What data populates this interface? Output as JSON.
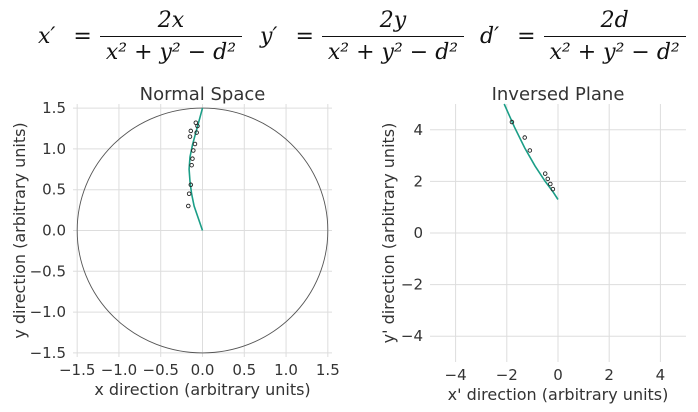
{
  "equations": [
    {
      "lhs": "x′",
      "eq": "=",
      "num": "2x",
      "den": "x² + y² − d²"
    },
    {
      "lhs": "y′",
      "eq": "=",
      "num": "2y",
      "den": "x² + y² − d²"
    },
    {
      "lhs": "d′",
      "eq": "=",
      "num": "2d",
      "den": "x² + y² − d²"
    }
  ],
  "colors": {
    "curve": "#1b9e87",
    "circle": "#555555",
    "grid": "#dddddd",
    "points": "#222222"
  },
  "chart_data": [
    {
      "type": "scatter",
      "title": "Normal Space",
      "xlabel": "x direction (arbitrary units)",
      "ylabel": "y direction (arbitrary units)",
      "xlim": [
        -1.55,
        1.55
      ],
      "ylim": [
        -1.55,
        1.55
      ],
      "xticks": [
        -1.5,
        -1.0,
        -0.5,
        0.0,
        0.5,
        1.0,
        1.5
      ],
      "yticks": [
        -1.5,
        -1.0,
        -0.5,
        0.0,
        0.5,
        1.0,
        1.5
      ],
      "xtick_labels": [
        "−1.5",
        "−1.0",
        "−0.5",
        "0.0",
        "0.5",
        "1.0",
        "1.5"
      ],
      "ytick_labels": [
        "−1.5",
        "−1.0",
        "−0.5",
        "0.0",
        "0.5",
        "1.0",
        "1.5"
      ],
      "grid": true,
      "circle": {
        "cx": 0,
        "cy": 0,
        "r": 1.5
      },
      "curve": {
        "x": [
          0.0,
          -0.05,
          -0.1,
          -0.13,
          -0.15,
          -0.16,
          -0.15,
          -0.12,
          -0.08,
          -0.04,
          0.0
        ],
        "y": [
          0.0,
          0.15,
          0.3,
          0.45,
          0.6,
          0.75,
          0.9,
          1.05,
          1.2,
          1.35,
          1.5
        ]
      },
      "points": {
        "x": [
          -0.17,
          -0.16,
          -0.14,
          -0.13,
          -0.12,
          -0.11,
          -0.09,
          -0.07,
          -0.06,
          -0.15,
          -0.14,
          -0.08
        ],
        "y": [
          0.3,
          0.45,
          0.56,
          0.8,
          0.88,
          0.98,
          1.06,
          1.2,
          1.28,
          1.15,
          1.22,
          1.32
        ]
      }
    },
    {
      "type": "scatter",
      "title": "Inversed Plane",
      "xlabel": "x' direction (arbitrary units)",
      "ylabel": "y' direction (arbitrary units)",
      "xlim": [
        -5.0,
        5.0
      ],
      "ylim": [
        -5.0,
        5.0
      ],
      "xticks": [
        -4,
        -2,
        0,
        2,
        4
      ],
      "yticks": [
        -4,
        -2,
        0,
        2,
        4
      ],
      "xtick_labels": [
        "−4",
        "−2",
        "0",
        "2",
        "4"
      ],
      "ytick_labels": [
        "−4",
        "−2",
        "0",
        "2",
        "4"
      ],
      "grid": true,
      "curve": {
        "x": [
          -2.1,
          -1.7,
          -1.3,
          -0.9,
          -0.5,
          -0.2,
          0.0
        ],
        "y": [
          5.0,
          4.1,
          3.3,
          2.6,
          2.0,
          1.6,
          1.3
        ]
      },
      "points": {
        "x": [
          -1.8,
          -1.3,
          -1.1,
          -0.5,
          -0.4,
          -0.3,
          -0.2
        ],
        "y": [
          4.3,
          3.7,
          3.2,
          2.3,
          2.1,
          1.9,
          1.7
        ]
      }
    }
  ]
}
